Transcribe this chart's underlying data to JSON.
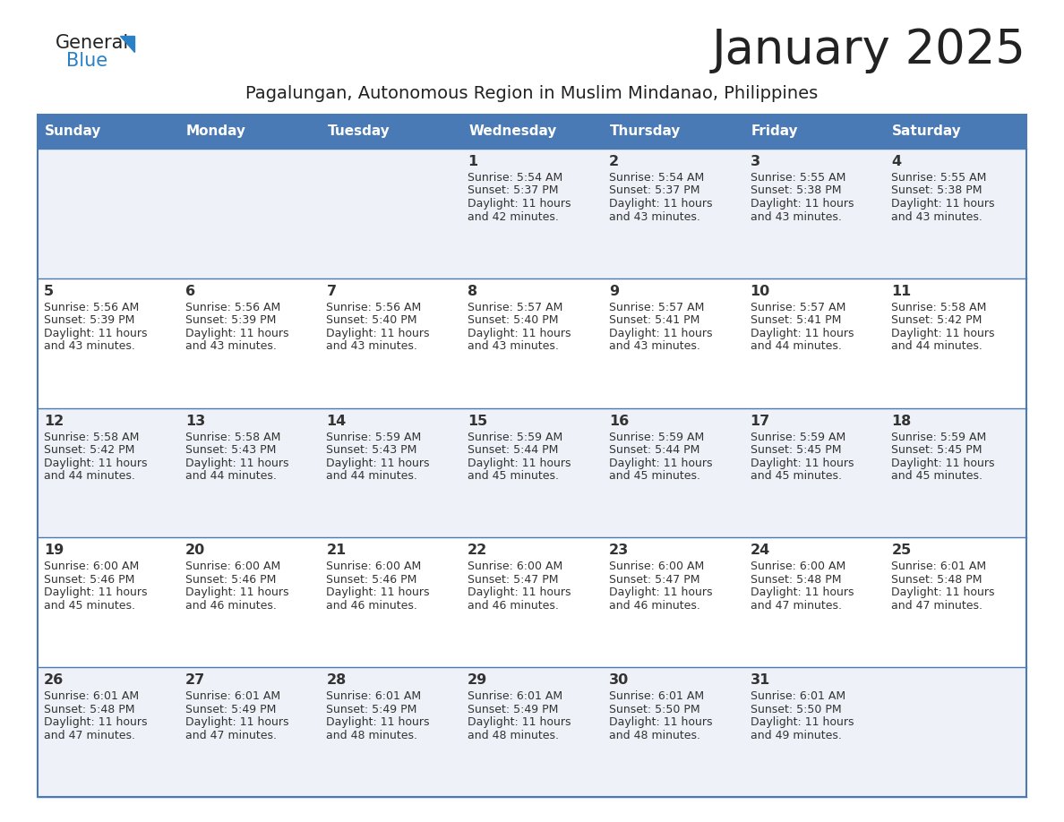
{
  "title": "January 2025",
  "subtitle": "Pagalungan, Autonomous Region in Muslim Mindanao, Philippines",
  "header_bg": "#4a7ab5",
  "header_text_color": "#FFFFFF",
  "odd_row_bg": "#eef1f7",
  "even_row_bg": "#FFFFFF",
  "separator_color": "#4a7ab5",
  "text_color": "#333333",
  "title_color": "#222222",
  "days": [
    "Sunday",
    "Monday",
    "Tuesday",
    "Wednesday",
    "Thursday",
    "Friday",
    "Saturday"
  ],
  "weeks": [
    [
      {
        "day": "",
        "sunrise": "",
        "sunset": "",
        "daylight": ""
      },
      {
        "day": "",
        "sunrise": "",
        "sunset": "",
        "daylight": ""
      },
      {
        "day": "",
        "sunrise": "",
        "sunset": "",
        "daylight": ""
      },
      {
        "day": "1",
        "sunrise": "5:54 AM",
        "sunset": "5:37 PM",
        "daylight": "11 hours and 42 minutes."
      },
      {
        "day": "2",
        "sunrise": "5:54 AM",
        "sunset": "5:37 PM",
        "daylight": "11 hours and 43 minutes."
      },
      {
        "day": "3",
        "sunrise": "5:55 AM",
        "sunset": "5:38 PM",
        "daylight": "11 hours and 43 minutes."
      },
      {
        "day": "4",
        "sunrise": "5:55 AM",
        "sunset": "5:38 PM",
        "daylight": "11 hours and 43 minutes."
      }
    ],
    [
      {
        "day": "5",
        "sunrise": "5:56 AM",
        "sunset": "5:39 PM",
        "daylight": "11 hours and 43 minutes."
      },
      {
        "day": "6",
        "sunrise": "5:56 AM",
        "sunset": "5:39 PM",
        "daylight": "11 hours and 43 minutes."
      },
      {
        "day": "7",
        "sunrise": "5:56 AM",
        "sunset": "5:40 PM",
        "daylight": "11 hours and 43 minutes."
      },
      {
        "day": "8",
        "sunrise": "5:57 AM",
        "sunset": "5:40 PM",
        "daylight": "11 hours and 43 minutes."
      },
      {
        "day": "9",
        "sunrise": "5:57 AM",
        "sunset": "5:41 PM",
        "daylight": "11 hours and 43 minutes."
      },
      {
        "day": "10",
        "sunrise": "5:57 AM",
        "sunset": "5:41 PM",
        "daylight": "11 hours and 44 minutes."
      },
      {
        "day": "11",
        "sunrise": "5:58 AM",
        "sunset": "5:42 PM",
        "daylight": "11 hours and 44 minutes."
      }
    ],
    [
      {
        "day": "12",
        "sunrise": "5:58 AM",
        "sunset": "5:42 PM",
        "daylight": "11 hours and 44 minutes."
      },
      {
        "day": "13",
        "sunrise": "5:58 AM",
        "sunset": "5:43 PM",
        "daylight": "11 hours and 44 minutes."
      },
      {
        "day": "14",
        "sunrise": "5:59 AM",
        "sunset": "5:43 PM",
        "daylight": "11 hours and 44 minutes."
      },
      {
        "day": "15",
        "sunrise": "5:59 AM",
        "sunset": "5:44 PM",
        "daylight": "11 hours and 45 minutes."
      },
      {
        "day": "16",
        "sunrise": "5:59 AM",
        "sunset": "5:44 PM",
        "daylight": "11 hours and 45 minutes."
      },
      {
        "day": "17",
        "sunrise": "5:59 AM",
        "sunset": "5:45 PM",
        "daylight": "11 hours and 45 minutes."
      },
      {
        "day": "18",
        "sunrise": "5:59 AM",
        "sunset": "5:45 PM",
        "daylight": "11 hours and 45 minutes."
      }
    ],
    [
      {
        "day": "19",
        "sunrise": "6:00 AM",
        "sunset": "5:46 PM",
        "daylight": "11 hours and 45 minutes."
      },
      {
        "day": "20",
        "sunrise": "6:00 AM",
        "sunset": "5:46 PM",
        "daylight": "11 hours and 46 minutes."
      },
      {
        "day": "21",
        "sunrise": "6:00 AM",
        "sunset": "5:46 PM",
        "daylight": "11 hours and 46 minutes."
      },
      {
        "day": "22",
        "sunrise": "6:00 AM",
        "sunset": "5:47 PM",
        "daylight": "11 hours and 46 minutes."
      },
      {
        "day": "23",
        "sunrise": "6:00 AM",
        "sunset": "5:47 PM",
        "daylight": "11 hours and 46 minutes."
      },
      {
        "day": "24",
        "sunrise": "6:00 AM",
        "sunset": "5:48 PM",
        "daylight": "11 hours and 47 minutes."
      },
      {
        "day": "25",
        "sunrise": "6:01 AM",
        "sunset": "5:48 PM",
        "daylight": "11 hours and 47 minutes."
      }
    ],
    [
      {
        "day": "26",
        "sunrise": "6:01 AM",
        "sunset": "5:48 PM",
        "daylight": "11 hours and 47 minutes."
      },
      {
        "day": "27",
        "sunrise": "6:01 AM",
        "sunset": "5:49 PM",
        "daylight": "11 hours and 47 minutes."
      },
      {
        "day": "28",
        "sunrise": "6:01 AM",
        "sunset": "5:49 PM",
        "daylight": "11 hours and 48 minutes."
      },
      {
        "day": "29",
        "sunrise": "6:01 AM",
        "sunset": "5:49 PM",
        "daylight": "11 hours and 48 minutes."
      },
      {
        "day": "30",
        "sunrise": "6:01 AM",
        "sunset": "5:50 PM",
        "daylight": "11 hours and 48 minutes."
      },
      {
        "day": "31",
        "sunrise": "6:01 AM",
        "sunset": "5:50 PM",
        "daylight": "11 hours and 49 minutes."
      },
      {
        "day": "",
        "sunrise": "",
        "sunset": "",
        "daylight": ""
      }
    ]
  ],
  "logo_general_color": "#222222",
  "logo_blue_color": "#2980c4",
  "logo_triangle_color": "#2980c4"
}
